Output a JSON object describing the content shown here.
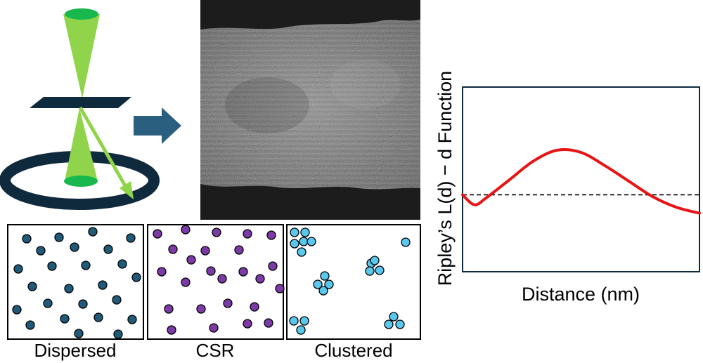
{
  "colors": {
    "navy": "#0f2a3d",
    "beam_green": "#8fd44a",
    "spot_green": "#18b84e",
    "arrow_blue": "#2a5f80",
    "dispersed_dot": "#1f5a78",
    "csr_dot": "#7b3aa6",
    "clustered_dot": "#5ac8ee",
    "curve_red": "#e81313"
  },
  "icons": [
    "stem-beam-schematic-icon",
    "right-arrow-icon"
  ],
  "panels": {
    "dispersed_label": "Dispersed",
    "csr_label": "CSR",
    "clustered_label": "Clustered"
  },
  "chart_data": {
    "type": "line",
    "title": "",
    "xlabel": "Distance (nm)",
    "ylabel": "Ripley’s L(d) − d Function",
    "x": [
      0,
      0.05,
      0.1,
      0.2,
      0.3,
      0.4,
      0.5,
      0.6,
      0.7,
      0.8,
      0.9,
      1.0
    ],
    "series": [
      {
        "values": [
          0,
          -0.13,
          -0.04,
          0.2,
          0.44,
          0.58,
          0.55,
          0.38,
          0.18,
          -0.02,
          -0.16,
          -0.24
        ]
      }
    ],
    "reference_line": {
      "y": 0,
      "style": "dashed"
    },
    "ylim": [
      -1,
      1.4
    ],
    "xlim": [
      0,
      1
    ],
    "grid": false,
    "tick_labels": false
  }
}
